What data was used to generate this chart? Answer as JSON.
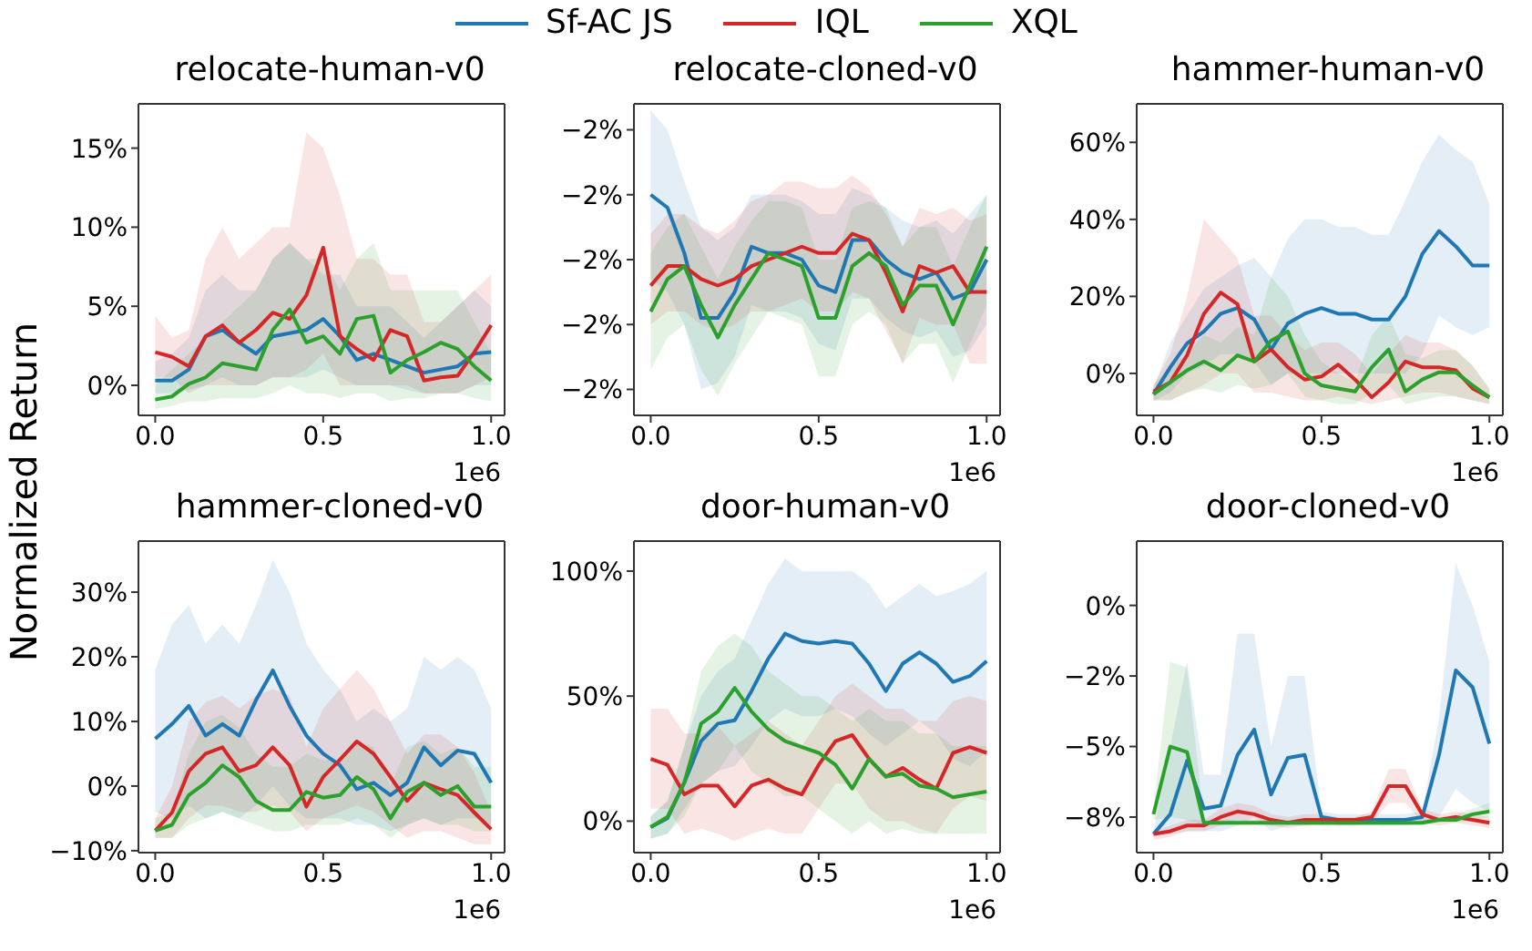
{
  "chart_data": [
    {
      "type": "line",
      "title": "relocate-human-v0",
      "ylabel": "Normalized Return",
      "legend": "top",
      "xlabel": "1e6",
      "x": [
        0,
        0.05,
        0.1,
        0.15,
        0.2,
        0.25,
        0.3,
        0.35,
        0.4,
        0.45,
        0.5,
        0.55,
        0.6,
        0.65,
        0.7,
        0.75,
        0.8,
        0.85,
        0.9,
        0.95,
        1
      ],
      "xlim": [
        -0.05,
        1.04
      ],
      "xticks": [
        {
          "value": 0,
          "label": "0.0"
        },
        {
          "value": 0.5,
          "label": "0.5"
        },
        {
          "value": 1,
          "label": "1.0"
        }
      ],
      "ylim": [
        -1.9,
        17.8
      ],
      "yticks": [
        {
          "value": 0,
          "label": "0%"
        },
        {
          "value": 5,
          "label": "5%"
        },
        {
          "value": 10,
          "label": "10%"
        },
        {
          "value": 15,
          "label": "15%"
        }
      ],
      "series": [
        {
          "name": "Sf-AC JS",
          "color": "#1f77b4",
          "values": [
            0.3,
            0.3,
            1.0,
            3.1,
            3.5,
            2.7,
            2.0,
            3.1,
            3.3,
            3.5,
            4.2,
            3.1,
            1.6,
            2.0,
            1.6,
            1.2,
            0.8,
            1.0,
            1.2,
            2.0,
            2.1
          ],
          "lower": [
            -0.5,
            -0.5,
            -0.3,
            0,
            0.5,
            0,
            0,
            0.5,
            0.5,
            0.5,
            1,
            0.5,
            0,
            0,
            0,
            -0.3,
            -0.5,
            -0.5,
            -0.5,
            0,
            0
          ],
          "upper": [
            1.5,
            2,
            3,
            6,
            7,
            6,
            6,
            8,
            9,
            8,
            7,
            7,
            5,
            5,
            5,
            4,
            3,
            4,
            5,
            6,
            5
          ]
        },
        {
          "name": "IQL",
          "color": "#d62728",
          "values": [
            2.1,
            1.8,
            1.2,
            3.1,
            3.8,
            2.7,
            3.5,
            4.6,
            4.2,
            5.7,
            8.7,
            3.1,
            2.3,
            1.6,
            3.5,
            3.1,
            0.3,
            0.5,
            0.6,
            2.1,
            3.8
          ],
          "lower": [
            0.5,
            0.5,
            -0.5,
            0,
            0,
            0,
            0,
            0.5,
            0.5,
            1,
            2,
            0,
            0,
            0,
            0,
            0,
            -0.5,
            -0.5,
            -0.5,
            0,
            0.5
          ],
          "upper": [
            4.4,
            3,
            3.5,
            8,
            10,
            8,
            9,
            10,
            10,
            16,
            15,
            12,
            8,
            8,
            7,
            7,
            4,
            4,
            5,
            6,
            7
          ]
        },
        {
          "name": "XQL",
          "color": "#2ca02c",
          "values": [
            -0.9,
            -0.7,
            0.1,
            0.5,
            1.4,
            1.2,
            1.0,
            3.5,
            4.8,
            2.7,
            3.1,
            2.0,
            4.2,
            4.4,
            0.8,
            1.6,
            2.1,
            2.7,
            2.3,
            1.2,
            0.3
          ],
          "lower": [
            -1.5,
            -1.3,
            -1,
            -1,
            -0.8,
            -0.8,
            -0.8,
            -0.5,
            0,
            -0.5,
            -0.5,
            -0.8,
            -0.5,
            -0.5,
            -1,
            -0.8,
            -0.8,
            -0.5,
            -0.5,
            -0.8,
            -1
          ],
          "upper": [
            0,
            1,
            2,
            3,
            4,
            5,
            6,
            8,
            9,
            8,
            8,
            6,
            8,
            9,
            6,
            6,
            6,
            6,
            6,
            4,
            2
          ]
        }
      ]
    },
    {
      "type": "line",
      "title": "relocate-cloned-v0",
      "xlabel": "1e6",
      "x": [
        0,
        0.05,
        0.1,
        0.15,
        0.2,
        0.25,
        0.3,
        0.35,
        0.4,
        0.45,
        0.5,
        0.55,
        0.6,
        0.65,
        0.7,
        0.75,
        0.8,
        0.85,
        0.9,
        0.95,
        1
      ],
      "xlim": [
        -0.05,
        1.04
      ],
      "xticks": [
        {
          "value": 0,
          "label": "0.0"
        },
        {
          "value": 0.5,
          "label": "0.5"
        },
        {
          "value": 1,
          "label": "1.0"
        }
      ],
      "ylim": [
        -2.24,
        -1.76
      ],
      "yticks": [
        {
          "value": -2.2,
          "label": "−2%"
        },
        {
          "value": -2.1,
          "label": "−2%"
        },
        {
          "value": -2.0,
          "label": "−2%"
        },
        {
          "value": -1.9,
          "label": "−2%"
        },
        {
          "value": -1.8,
          "label": "−2%"
        }
      ],
      "series": [
        {
          "color": "#1f77b4",
          "values": [
            -1.9,
            -1.92,
            -1.99,
            -2.09,
            -2.09,
            -2.05,
            -1.98,
            -1.99,
            -1.99,
            -2.0,
            -2.04,
            -2.05,
            -1.97,
            -1.97,
            -2.0,
            -2.02,
            -2.03,
            -2.02,
            -2.06,
            -2.05,
            -2.0
          ],
          "lower": [
            -2.03,
            -2.05,
            -2.1,
            -2.2,
            -2.19,
            -2.15,
            -2.07,
            -2.08,
            -2.08,
            -2.09,
            -2.13,
            -2.14,
            -2.06,
            -2.06,
            -2.09,
            -2.11,
            -2.12,
            -2.11,
            -2.15,
            -2.14,
            -2.1
          ],
          "upper": [
            -1.77,
            -1.8,
            -1.88,
            -1.95,
            -1.97,
            -1.95,
            -1.9,
            -1.9,
            -1.9,
            -1.91,
            -1.93,
            -1.93,
            -1.89,
            -1.9,
            -1.92,
            -1.94,
            -1.95,
            -1.94,
            -1.96,
            -1.93,
            -1.9
          ]
        },
        {
          "color": "#d62728",
          "values": [
            -2.04,
            -2.01,
            -2.01,
            -2.03,
            -2.04,
            -2.03,
            -2.01,
            -2.0,
            -1.99,
            -1.98,
            -1.99,
            -1.99,
            -1.96,
            -1.97,
            -2.02,
            -2.08,
            -2.01,
            -2.02,
            -2.01,
            -2.05,
            -2.05
          ],
          "lower": [
            -2.1,
            -2.08,
            -2.08,
            -2.1,
            -2.11,
            -2.1,
            -2.08,
            -2.08,
            -2.07,
            -2.06,
            -2.08,
            -2.08,
            -2.05,
            -2.06,
            -2.11,
            -2.16,
            -2.09,
            -2.1,
            -2.1,
            -2.16,
            -2.16
          ],
          "upper": [
            -1.96,
            -1.93,
            -1.93,
            -1.95,
            -1.96,
            -1.94,
            -1.91,
            -1.9,
            -1.88,
            -1.88,
            -1.89,
            -1.89,
            -1.87,
            -1.89,
            -1.93,
            -1.98,
            -1.92,
            -1.93,
            -1.92,
            -1.94,
            -1.93
          ]
        },
        {
          "color": "#2ca02c",
          "values": [
            -2.08,
            -2.03,
            -2.01,
            -2.07,
            -2.12,
            -2.07,
            -2.03,
            -1.99,
            -2.0,
            -2.01,
            -2.09,
            -2.09,
            -2.01,
            -1.99,
            -2.01,
            -2.07,
            -2.04,
            -2.04,
            -2.1,
            -2.04,
            -1.98
          ],
          "lower": [
            -2.17,
            -2.12,
            -2.1,
            -2.17,
            -2.21,
            -2.16,
            -2.12,
            -2.08,
            -2.09,
            -2.1,
            -2.18,
            -2.18,
            -2.1,
            -2.08,
            -2.1,
            -2.16,
            -2.13,
            -2.13,
            -2.19,
            -2.13,
            -2.07
          ],
          "upper": [
            -1.99,
            -1.95,
            -1.93,
            -1.98,
            -2.03,
            -1.98,
            -1.94,
            -1.91,
            -1.91,
            -1.92,
            -2.0,
            -2.0,
            -1.92,
            -1.91,
            -1.92,
            -1.98,
            -1.95,
            -1.95,
            -2.01,
            -1.95,
            -1.9
          ]
        }
      ]
    },
    {
      "type": "line",
      "title": "hammer-human-v0",
      "xlabel": "1e6",
      "x": [
        0,
        0.05,
        0.1,
        0.15,
        0.2,
        0.25,
        0.3,
        0.35,
        0.4,
        0.45,
        0.5,
        0.55,
        0.6,
        0.65,
        0.7,
        0.75,
        0.8,
        0.85,
        0.9,
        0.95,
        1
      ],
      "xlim": [
        -0.05,
        1.04
      ],
      "xticks": [
        {
          "value": 0,
          "label": "0.0"
        },
        {
          "value": 0.5,
          "label": "0.5"
        },
        {
          "value": 1,
          "label": "1.0"
        }
      ],
      "ylim": [
        -10.9,
        70
      ],
      "yticks": [
        {
          "value": 0,
          "label": "0%"
        },
        {
          "value": 20,
          "label": "20%"
        },
        {
          "value": 40,
          "label": "40%"
        },
        {
          "value": 60,
          "label": "60%"
        }
      ],
      "series": [
        {
          "color": "#1f77b4",
          "values": [
            -5.4,
            1.6,
            7.8,
            10.9,
            15.5,
            17,
            14,
            6.2,
            13,
            15.5,
            17,
            15.5,
            15.5,
            14,
            14,
            20,
            31,
            37,
            33,
            28,
            28
          ],
          "lower": [
            -7,
            -5,
            0,
            2,
            5,
            5,
            3,
            -3,
            0,
            0,
            0,
            0,
            0,
            0,
            0,
            0,
            5,
            15,
            12,
            10,
            12
          ],
          "upper": [
            -4,
            8,
            15,
            22,
            25,
            28,
            30,
            25,
            35,
            40,
            40,
            38,
            38,
            36,
            36,
            45,
            55,
            62,
            58,
            55,
            44
          ]
        },
        {
          "color": "#d62728",
          "values": [
            -4.7,
            -2.3,
            4.7,
            15.5,
            21,
            18,
            3.1,
            6.2,
            1.6,
            -1.6,
            -0.8,
            2.3,
            -1.6,
            -6.2,
            -2.3,
            3.1,
            1.6,
            1.6,
            0.8,
            -3.9,
            -6.2
          ],
          "lower": [
            -7,
            -7,
            -5,
            -3,
            0,
            0,
            -5,
            -5,
            -6,
            -7,
            -7,
            -6,
            -7,
            -8,
            -7,
            -6,
            -5,
            -5,
            -6,
            -7,
            -8
          ],
          "upper": [
            -3,
            5,
            20,
            40,
            35,
            30,
            15,
            15,
            10,
            6,
            8,
            8,
            5,
            0,
            5,
            10,
            8,
            8,
            6,
            2,
            -4
          ]
        },
        {
          "color": "#2ca02c",
          "values": [
            -5.4,
            -2.3,
            0.8,
            3.1,
            0.8,
            4.7,
            3.1,
            8.5,
            10.9,
            0,
            -3.1,
            -3.9,
            -4.7,
            1.6,
            6.2,
            -4.7,
            -1.6,
            0.3,
            0.3,
            -3.1,
            -6.2
          ],
          "lower": [
            -7,
            -7,
            -5,
            -4,
            -5,
            -3,
            -4,
            -3,
            0,
            -6,
            -7,
            -8,
            -8,
            -5,
            -3,
            -8,
            -7,
            -6,
            -6,
            -7,
            -8
          ],
          "upper": [
            -3,
            2,
            5,
            10,
            8,
            12,
            10,
            25,
            20,
            10,
            3,
            0,
            -2,
            10,
            15,
            5,
            4,
            6,
            6,
            2,
            -4
          ]
        }
      ]
    },
    {
      "type": "line",
      "title": "hammer-cloned-v0",
      "xlabel": "1e6",
      "x": [
        0,
        0.05,
        0.1,
        0.15,
        0.2,
        0.25,
        0.3,
        0.35,
        0.4,
        0.45,
        0.5,
        0.55,
        0.6,
        0.65,
        0.7,
        0.75,
        0.8,
        0.85,
        0.9,
        0.95,
        1
      ],
      "xlim": [
        -0.05,
        1.04
      ],
      "xticks": [
        {
          "value": 0,
          "label": "0.0"
        },
        {
          "value": 0.5,
          "label": "0.5"
        },
        {
          "value": 1,
          "label": "1.0"
        }
      ],
      "ylim": [
        -10.3,
        37.9
      ],
      "yticks": [
        {
          "value": -10,
          "label": "−10%"
        },
        {
          "value": 0,
          "label": "0%"
        },
        {
          "value": 10,
          "label": "10%"
        },
        {
          "value": 20,
          "label": "20%"
        },
        {
          "value": 30,
          "label": "30%"
        }
      ],
      "series": [
        {
          "color": "#1f77b4",
          "values": [
            7.3,
            9.6,
            12.4,
            7.8,
            9.6,
            7.8,
            13.3,
            17.9,
            12.4,
            7.8,
            5,
            3.2,
            -0.5,
            0.5,
            -1.4,
            0.5,
            6,
            3.2,
            5.5,
            5,
            0.5
          ],
          "lower": [
            -4,
            -5,
            -3,
            -5,
            -4,
            -5,
            -3,
            0,
            -3,
            -5,
            -5,
            -5,
            -6,
            -6,
            -7,
            -6,
            -5,
            -6,
            -5,
            -5,
            -6
          ],
          "upper": [
            18,
            25,
            28,
            22,
            25,
            22,
            28,
            35,
            30,
            22,
            18,
            15,
            10,
            12,
            10,
            12,
            20,
            18,
            20,
            18,
            12
          ]
        },
        {
          "color": "#d62728",
          "values": [
            -6.9,
            -4.1,
            2.3,
            5,
            6,
            2.3,
            3.2,
            6,
            3.2,
            -3.2,
            1.4,
            4.1,
            6.9,
            5,
            1.4,
            -2.3,
            0.5,
            -0.5,
            -1.4,
            -4.1,
            -6.7
          ],
          "lower": [
            -8,
            -8,
            -5,
            -3,
            -3,
            -4,
            -4,
            -3,
            -4,
            -7,
            -5,
            -4,
            -3,
            -4,
            -6,
            -8,
            -7,
            -7,
            -8,
            -9,
            -9
          ],
          "upper": [
            -5,
            0,
            10,
            13,
            14,
            12,
            14,
            15,
            14,
            6,
            12,
            15,
            18,
            15,
            10,
            5,
            8,
            8,
            6,
            2,
            -4
          ]
        },
        {
          "color": "#2ca02c",
          "values": [
            -6.9,
            -6,
            -1.4,
            0.5,
            3.2,
            1.4,
            -2.3,
            -3.7,
            -3.7,
            -0.9,
            -1.8,
            -1.4,
            1.4,
            -0.5,
            -5,
            -0.9,
            0.5,
            -1.4,
            0,
            -3.2,
            -3.2
          ],
          "lower": [
            -8,
            -8,
            -6,
            -5,
            -4,
            -5,
            -6,
            -7,
            -7,
            -6,
            -6,
            -6,
            -5,
            -6,
            -8,
            -6,
            -5,
            -6,
            -6,
            -7,
            -7
          ],
          "upper": [
            -5,
            -4,
            5,
            10,
            11,
            9,
            5,
            3,
            3,
            5,
            4,
            4,
            7,
            6,
            0,
            6,
            7,
            5,
            6,
            3,
            3
          ]
        }
      ]
    },
    {
      "type": "line",
      "title": "door-human-v0",
      "xlabel": "1e6",
      "x": [
        0,
        0.05,
        0.1,
        0.15,
        0.2,
        0.25,
        0.3,
        0.35,
        0.4,
        0.45,
        0.5,
        0.55,
        0.6,
        0.65,
        0.7,
        0.75,
        0.8,
        0.85,
        0.9,
        0.95,
        1
      ],
      "xlim": [
        -0.05,
        1.04
      ],
      "xticks": [
        {
          "value": 0,
          "label": "0.0"
        },
        {
          "value": 0.5,
          "label": "0.5"
        },
        {
          "value": 1,
          "label": "1.0"
        }
      ],
      "ylim": [
        -12.6,
        112
      ],
      "yticks": [
        {
          "value": 0,
          "label": "0%"
        },
        {
          "value": 50,
          "label": "50%"
        },
        {
          "value": 100,
          "label": "100%"
        }
      ],
      "series": [
        {
          "color": "#1f77b4",
          "values": [
            -2.4,
            1.2,
            15.4,
            32,
            39,
            40.3,
            52,
            65,
            75,
            72,
            71,
            72,
            71,
            63,
            52,
            63,
            67.5,
            63,
            55.7,
            58,
            64
          ],
          "lower": [
            -7,
            -5,
            5,
            15,
            20,
            22,
            30,
            40,
            45,
            42,
            42,
            45,
            42,
            35,
            30,
            35,
            40,
            35,
            25,
            22,
            28
          ],
          "upper": [
            2,
            8,
            30,
            50,
            60,
            65,
            80,
            95,
            105,
            100,
            100,
            100,
            100,
            95,
            85,
            90,
            95,
            90,
            92,
            95,
            100
          ]
        },
        {
          "color": "#d62728",
          "values": [
            24.9,
            22.5,
            10.7,
            14.2,
            14.2,
            5.9,
            14.2,
            16.6,
            13,
            10.7,
            22.5,
            32,
            34.4,
            24.9,
            17.8,
            21.3,
            16.6,
            13,
            27.3,
            29.6,
            27.3
          ],
          "lower": [
            5,
            5,
            -5,
            -3,
            -5,
            -8,
            -5,
            -3,
            -5,
            -5,
            5,
            15,
            15,
            5,
            0,
            0,
            -3,
            -5,
            5,
            10,
            8
          ],
          "upper": [
            45,
            45,
            35,
            35,
            38,
            30,
            35,
            40,
            35,
            30,
            40,
            50,
            55,
            50,
            45,
            45,
            40,
            40,
            48,
            50,
            48
          ]
        },
        {
          "color": "#2ca02c",
          "values": [
            -2.4,
            1.7,
            15.4,
            39,
            43.8,
            53.3,
            43.8,
            36.7,
            32,
            29.6,
            27.3,
            22.5,
            13,
            24.9,
            17.8,
            19,
            14.2,
            13,
            9.5,
            10.7,
            11.8
          ],
          "lower": [
            -7,
            -5,
            2,
            15,
            20,
            30,
            20,
            15,
            10,
            10,
            5,
            0,
            -5,
            0,
            -5,
            -3,
            -5,
            -5,
            -5,
            -5,
            -5
          ],
          "upper": [
            2,
            8,
            30,
            60,
            70,
            75,
            70,
            60,
            55,
            50,
            50,
            45,
            40,
            45,
            40,
            40,
            35,
            35,
            30,
            30,
            30
          ]
        }
      ]
    },
    {
      "type": "line",
      "title": "door-cloned-v0",
      "xlabel": "1e6",
      "x": [
        0,
        0.05,
        0.1,
        0.15,
        0.2,
        0.25,
        0.3,
        0.35,
        0.4,
        0.45,
        0.5,
        0.55,
        0.6,
        0.65,
        0.7,
        0.75,
        0.8,
        0.85,
        0.9,
        0.95,
        1
      ],
      "xlim": [
        -0.05,
        1.04
      ],
      "xticks": [
        {
          "value": 0,
          "label": "0.0"
        },
        {
          "value": 0.5,
          "label": "0.5"
        },
        {
          "value": 1,
          "label": "1.0"
        }
      ],
      "ylim": [
        -8.76,
        2.28
      ],
      "yticks": [
        {
          "value": -7.5,
          "label": "−8%"
        },
        {
          "value": -5,
          "label": "−5%"
        },
        {
          "value": -2.5,
          "label": "−2%"
        },
        {
          "value": 0,
          "label": "0%"
        }
      ],
      "series": [
        {
          "color": "#1f77b4",
          "values": [
            -8.1,
            -7.4,
            -5.5,
            -7.2,
            -7.1,
            -5.3,
            -4.4,
            -6.7,
            -5.4,
            -5.3,
            -7.5,
            -7.6,
            -7.6,
            -7.6,
            -7.6,
            -7.6,
            -7.5,
            -5.3,
            -2.3,
            -2.9,
            -4.9
          ],
          "lower": [
            -8.2,
            -8.1,
            -8,
            -8.0,
            -8,
            -7.8,
            -7.5,
            -8,
            -7.8,
            -7.8,
            -7.7,
            -7.8,
            -7.8,
            -7.8,
            -7.8,
            -7.8,
            -7.7,
            -7.5,
            -6.5,
            -7,
            -7.3
          ],
          "upper": [
            -8.0,
            -5,
            -2,
            -6,
            -6,
            -1,
            -1,
            -5,
            -2.5,
            -2.5,
            -7.3,
            -7.4,
            -7.4,
            -7.4,
            -7.4,
            -7.4,
            -7.3,
            -4,
            1.5,
            0,
            -2
          ]
        },
        {
          "color": "#d62728",
          "values": [
            -8.1,
            -8.0,
            -7.8,
            -7.8,
            -7.5,
            -7.3,
            -7.4,
            -7.6,
            -7.7,
            -7.6,
            -7.6,
            -7.6,
            -7.6,
            -7.5,
            -6.4,
            -6.4,
            -7.4,
            -7.6,
            -7.5,
            -7.6,
            -7.7
          ],
          "lower": [
            -8.3,
            -8.2,
            -8.0,
            -8.0,
            -7.8,
            -7.6,
            -7.7,
            -7.8,
            -7.9,
            -7.8,
            -7.8,
            -7.8,
            -7.8,
            -7.7,
            -7.0,
            -7.0,
            -7.7,
            -7.8,
            -7.7,
            -7.8,
            -7.9
          ],
          "upper": [
            -8.0,
            -7.8,
            -7.6,
            -7.6,
            -7.2,
            -7.0,
            -7.1,
            -7.4,
            -7.5,
            -7.4,
            -7.4,
            -7.5,
            -7.5,
            -7.3,
            -5.8,
            -5.8,
            -7.2,
            -7.4,
            -7.3,
            -7.4,
            -7.5
          ]
        },
        {
          "color": "#2ca02c",
          "values": [
            -7.4,
            -5.0,
            -5.2,
            -7.7,
            -7.7,
            -7.7,
            -7.7,
            -7.7,
            -7.7,
            -7.7,
            -7.7,
            -7.7,
            -7.7,
            -7.7,
            -7.7,
            -7.7,
            -7.7,
            -7.6,
            -7.6,
            -7.4,
            -7.3
          ],
          "lower": [
            -7.6,
            -7.5,
            -7.6,
            -7.8,
            -7.8,
            -7.8,
            -7.8,
            -7.8,
            -7.8,
            -7.8,
            -7.8,
            -7.8,
            -7.8,
            -7.8,
            -7.8,
            -7.8,
            -7.8,
            -7.7,
            -7.7,
            -7.6,
            -7.5
          ],
          "upper": [
            -7.2,
            -2,
            -2.2,
            -7.6,
            -7.6,
            -7.6,
            -7.6,
            -7.6,
            -7.6,
            -7.6,
            -7.6,
            -7.6,
            -7.6,
            -7.6,
            -7.6,
            -7.6,
            -7.6,
            -7.5,
            -7.4,
            -7.2,
            -7.0
          ]
        }
      ]
    }
  ]
}
